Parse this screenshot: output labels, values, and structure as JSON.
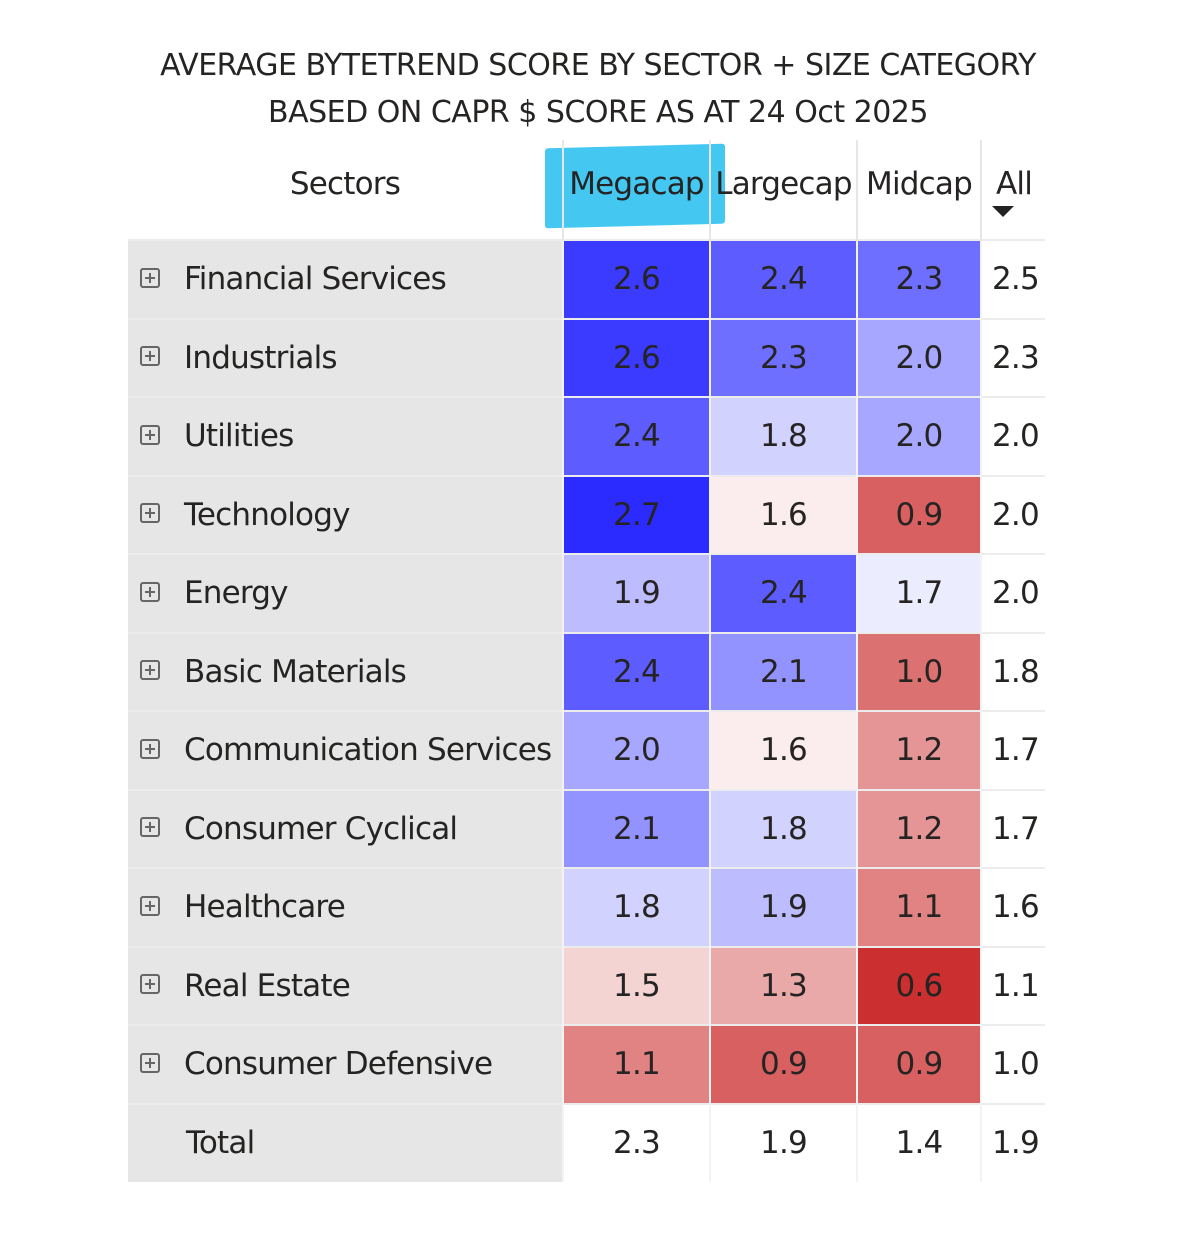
{
  "chart_data": {
    "type": "heatmap",
    "title": [
      "AVERAGE BYTETREND SCORE BY SECTOR + SIZE CATEGORY",
      "BASED ON CAPR $ SCORE AS AT 24 Oct 2025"
    ],
    "row_header": "Sectors",
    "columns": [
      "Megacap",
      "Largecap",
      "Midcap",
      "All"
    ],
    "highlighted_column": "Megacap",
    "sort_indicator": "All (descending)",
    "rows": [
      {
        "name": "Financial Services",
        "values": [
          2.6,
          2.4,
          2.3,
          2.5
        ]
      },
      {
        "name": "Industrials",
        "values": [
          2.6,
          2.3,
          2.0,
          2.3
        ]
      },
      {
        "name": "Utilities",
        "values": [
          2.4,
          1.8,
          2.0,
          2.0
        ]
      },
      {
        "name": "Technology",
        "values": [
          2.7,
          1.6,
          0.9,
          2.0
        ]
      },
      {
        "name": "Energy",
        "values": [
          1.9,
          2.4,
          1.7,
          2.0
        ]
      },
      {
        "name": "Basic Materials",
        "values": [
          2.4,
          2.1,
          1.0,
          1.8
        ]
      },
      {
        "name": "Communication Services",
        "values": [
          2.0,
          1.6,
          1.2,
          1.7
        ]
      },
      {
        "name": "Consumer Cyclical",
        "values": [
          2.1,
          1.8,
          1.2,
          1.7
        ]
      },
      {
        "name": "Healthcare",
        "values": [
          1.8,
          1.9,
          1.1,
          1.6
        ]
      },
      {
        "name": "Real Estate",
        "values": [
          1.5,
          1.3,
          0.6,
          1.1
        ]
      },
      {
        "name": "Consumer Defensive",
        "values": [
          1.1,
          0.9,
          0.9,
          1.0
        ]
      }
    ],
    "total": {
      "name": "Total",
      "values": [
        2.3,
        1.9,
        1.4,
        1.9
      ]
    },
    "color_scale": {
      "min": 0.6,
      "mid": 1.65,
      "max": 2.7,
      "min_color": "#cc2f2f",
      "mid_color": "#ffffff",
      "max_color": "#2b2bff"
    },
    "highlight_color": "#44c8f2"
  }
}
